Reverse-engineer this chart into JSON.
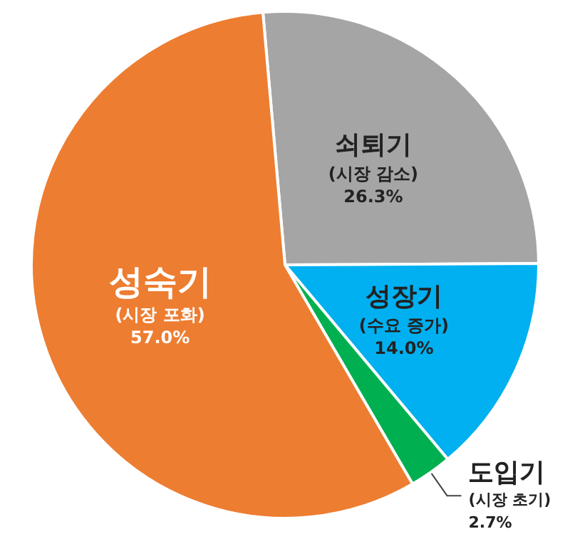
{
  "chart_data": {
    "type": "pie",
    "categories": [
      "쇠퇴기\n(시장 감소)",
      "성장기\n(수요 증가)",
      "도입기\n(시장 초기)",
      "성숙기\n(시장 포화)"
    ],
    "values": [
      26.3,
      14.0,
      2.7,
      57.0
    ],
    "value_labels": [
      "26.3%",
      "14.0%",
      "2.7%",
      "57.0%"
    ],
    "colors": [
      "#a5a5a5",
      "#00b0f0",
      "#00b050",
      "#ed7d31"
    ],
    "legend": false
  }
}
